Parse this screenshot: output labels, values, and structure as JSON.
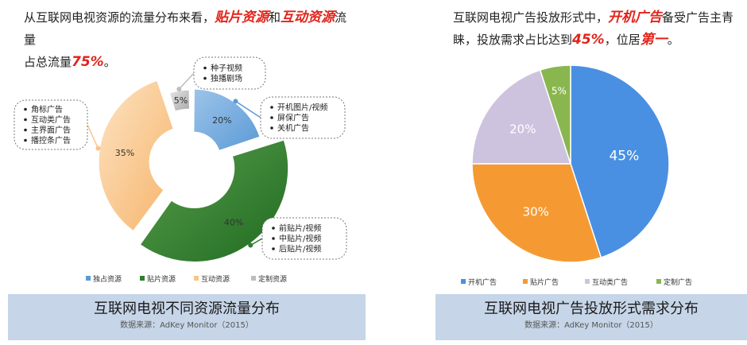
{
  "left": {
    "headline": {
      "line1_a": "从互联网电视资源的流量分布来看，",
      "hl1": "贴片资源",
      "line1_b": "和",
      "hl2": "互动资源",
      "line1_c": "流量",
      "line2_a": "占总流量",
      "hl3": "75%",
      "line2_b": "。"
    },
    "callouts": {
      "exclusive": [
        "开机图片/视频",
        "屏保广告",
        "关机广告"
      ],
      "preroll": [
        "前贴片/视频",
        "中贴片/视频",
        "后贴片/视频"
      ],
      "interactive": [
        "角标广告",
        "互动类广告",
        "主界面广告",
        "播控条广告"
      ],
      "custom": [
        "种子视频",
        "独播剧场"
      ]
    },
    "footer": {
      "title": "互联网电视不同资源流量分布",
      "source": "数据来源：AdKey Monitor（2015）"
    },
    "colors": {
      "exclusive": "#5b9bd5",
      "preroll": "#2e7d32",
      "interactive": "#f9c58a",
      "custom": "#bdbdbd"
    }
  },
  "right": {
    "headline": {
      "line1_a": "互联网电视广告投放形式中，",
      "hl1": "开机广告",
      "line1_b": "备受广告主青",
      "line2_a": "睐，投放需求占比达到",
      "hl2": "45%",
      "line2_b": "，位居",
      "hl3": "第一",
      "line2_c": "。"
    },
    "footer": {
      "title": "互联网电视广告投放形式需求分布",
      "source": "数据来源：AdKey Monitor（2015）"
    },
    "colors": {
      "boot": "#4a90e2",
      "preroll": "#f59a33",
      "interactive": "#cdc3de",
      "custom": "#8ab650"
    }
  },
  "chart_data": [
    {
      "type": "pie",
      "style": "exploded-donut",
      "title": "互联网电视不同资源流量分布",
      "categories": [
        "独占资源",
        "贴片资源",
        "互动资源",
        "定制资源"
      ],
      "values": [
        20,
        40,
        35,
        5
      ],
      "labels": [
        "20%",
        "40%",
        "35%",
        "5%"
      ],
      "legend": "bottom"
    },
    {
      "type": "pie",
      "title": "互联网电视广告投放形式需求分布",
      "categories": [
        "开机广告",
        "贴片广告",
        "互动类广告",
        "定制广告"
      ],
      "values": [
        45,
        30,
        20,
        5
      ],
      "labels": [
        "45%",
        "30%",
        "20%",
        "5%"
      ],
      "legend": "bottom"
    }
  ]
}
